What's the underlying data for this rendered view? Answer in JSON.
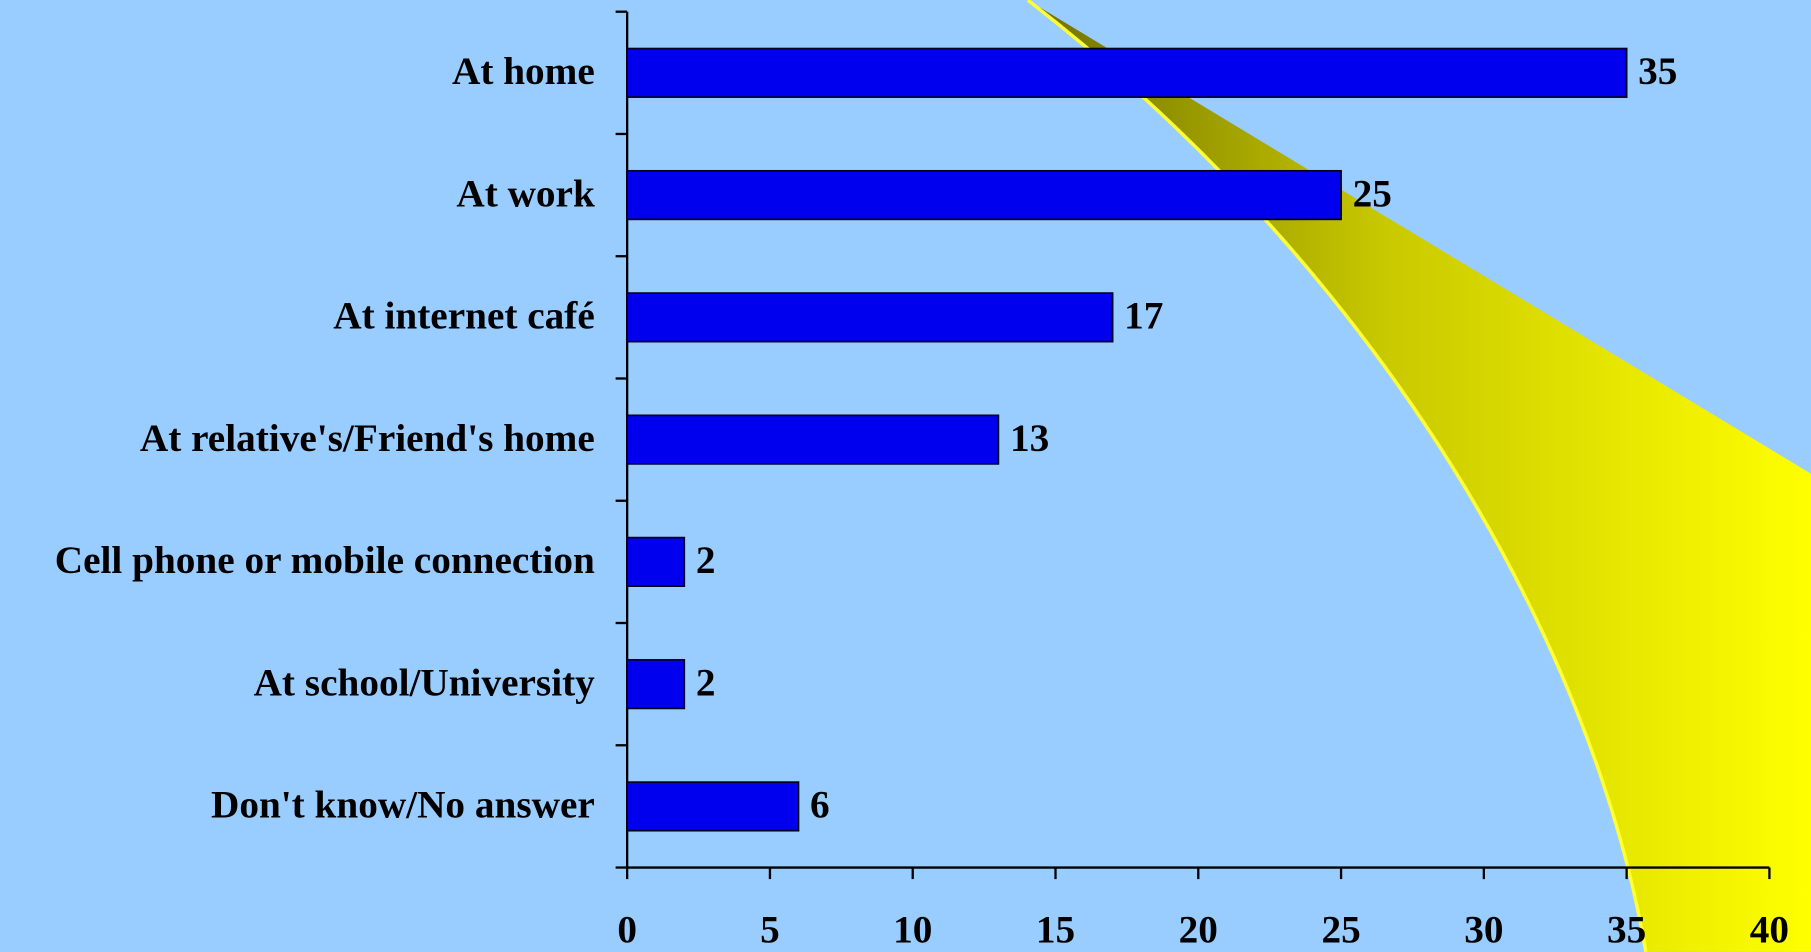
{
  "chart_data": {
    "type": "bar",
    "orientation": "horizontal",
    "categories": [
      "At home",
      "At work",
      "At internet café",
      "At relative's/Friend's home",
      "Cell phone or mobile connection",
      "At school/University",
      "Don't know/No answer"
    ],
    "values": [
      35,
      25,
      17,
      13,
      2,
      2,
      6
    ],
    "color": "#0000ee",
    "xlim": [
      0,
      40
    ],
    "xticks": [
      0,
      5,
      10,
      15,
      20,
      25,
      30,
      35,
      40
    ]
  }
}
